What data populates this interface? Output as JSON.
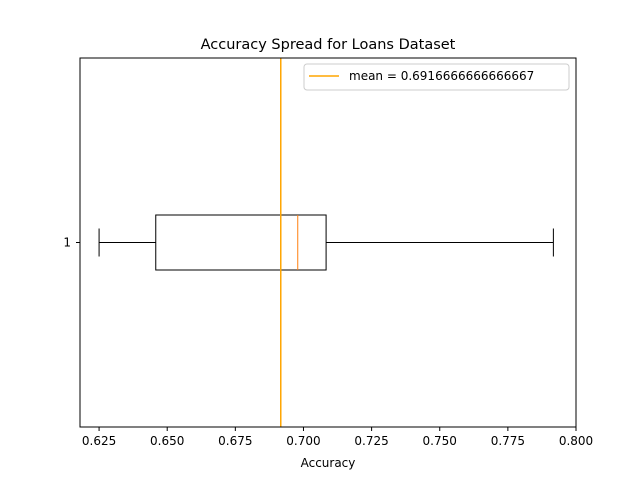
{
  "chart_data": {
    "type": "boxplot",
    "orientation": "horizontal",
    "title": "Accuracy Spread for Loans Dataset",
    "xlabel": "Accuracy",
    "ylabel": "",
    "xlim": [
      0.618,
      0.8
    ],
    "xticks": [
      0.625,
      0.65,
      0.675,
      0.7,
      0.725,
      0.75,
      0.775,
      0.8
    ],
    "xtick_labels": [
      "0.625",
      "0.650",
      "0.675",
      "0.700",
      "0.725",
      "0.750",
      "0.775",
      "0.800"
    ],
    "yticks": [
      1
    ],
    "ytick_labels": [
      "1"
    ],
    "box": {
      "whisker_low": 0.625,
      "q1": 0.6458,
      "median": 0.6979,
      "q3": 0.7083,
      "whisker_high": 0.7917
    },
    "mean_line": {
      "value": 0.6916666666666667,
      "label": "mean = 0.6916666666666667",
      "color": "#ffa500"
    },
    "median_color": "#ff7f0e",
    "box_color": "#000000",
    "grid": false,
    "legend_position": "top-right"
  }
}
